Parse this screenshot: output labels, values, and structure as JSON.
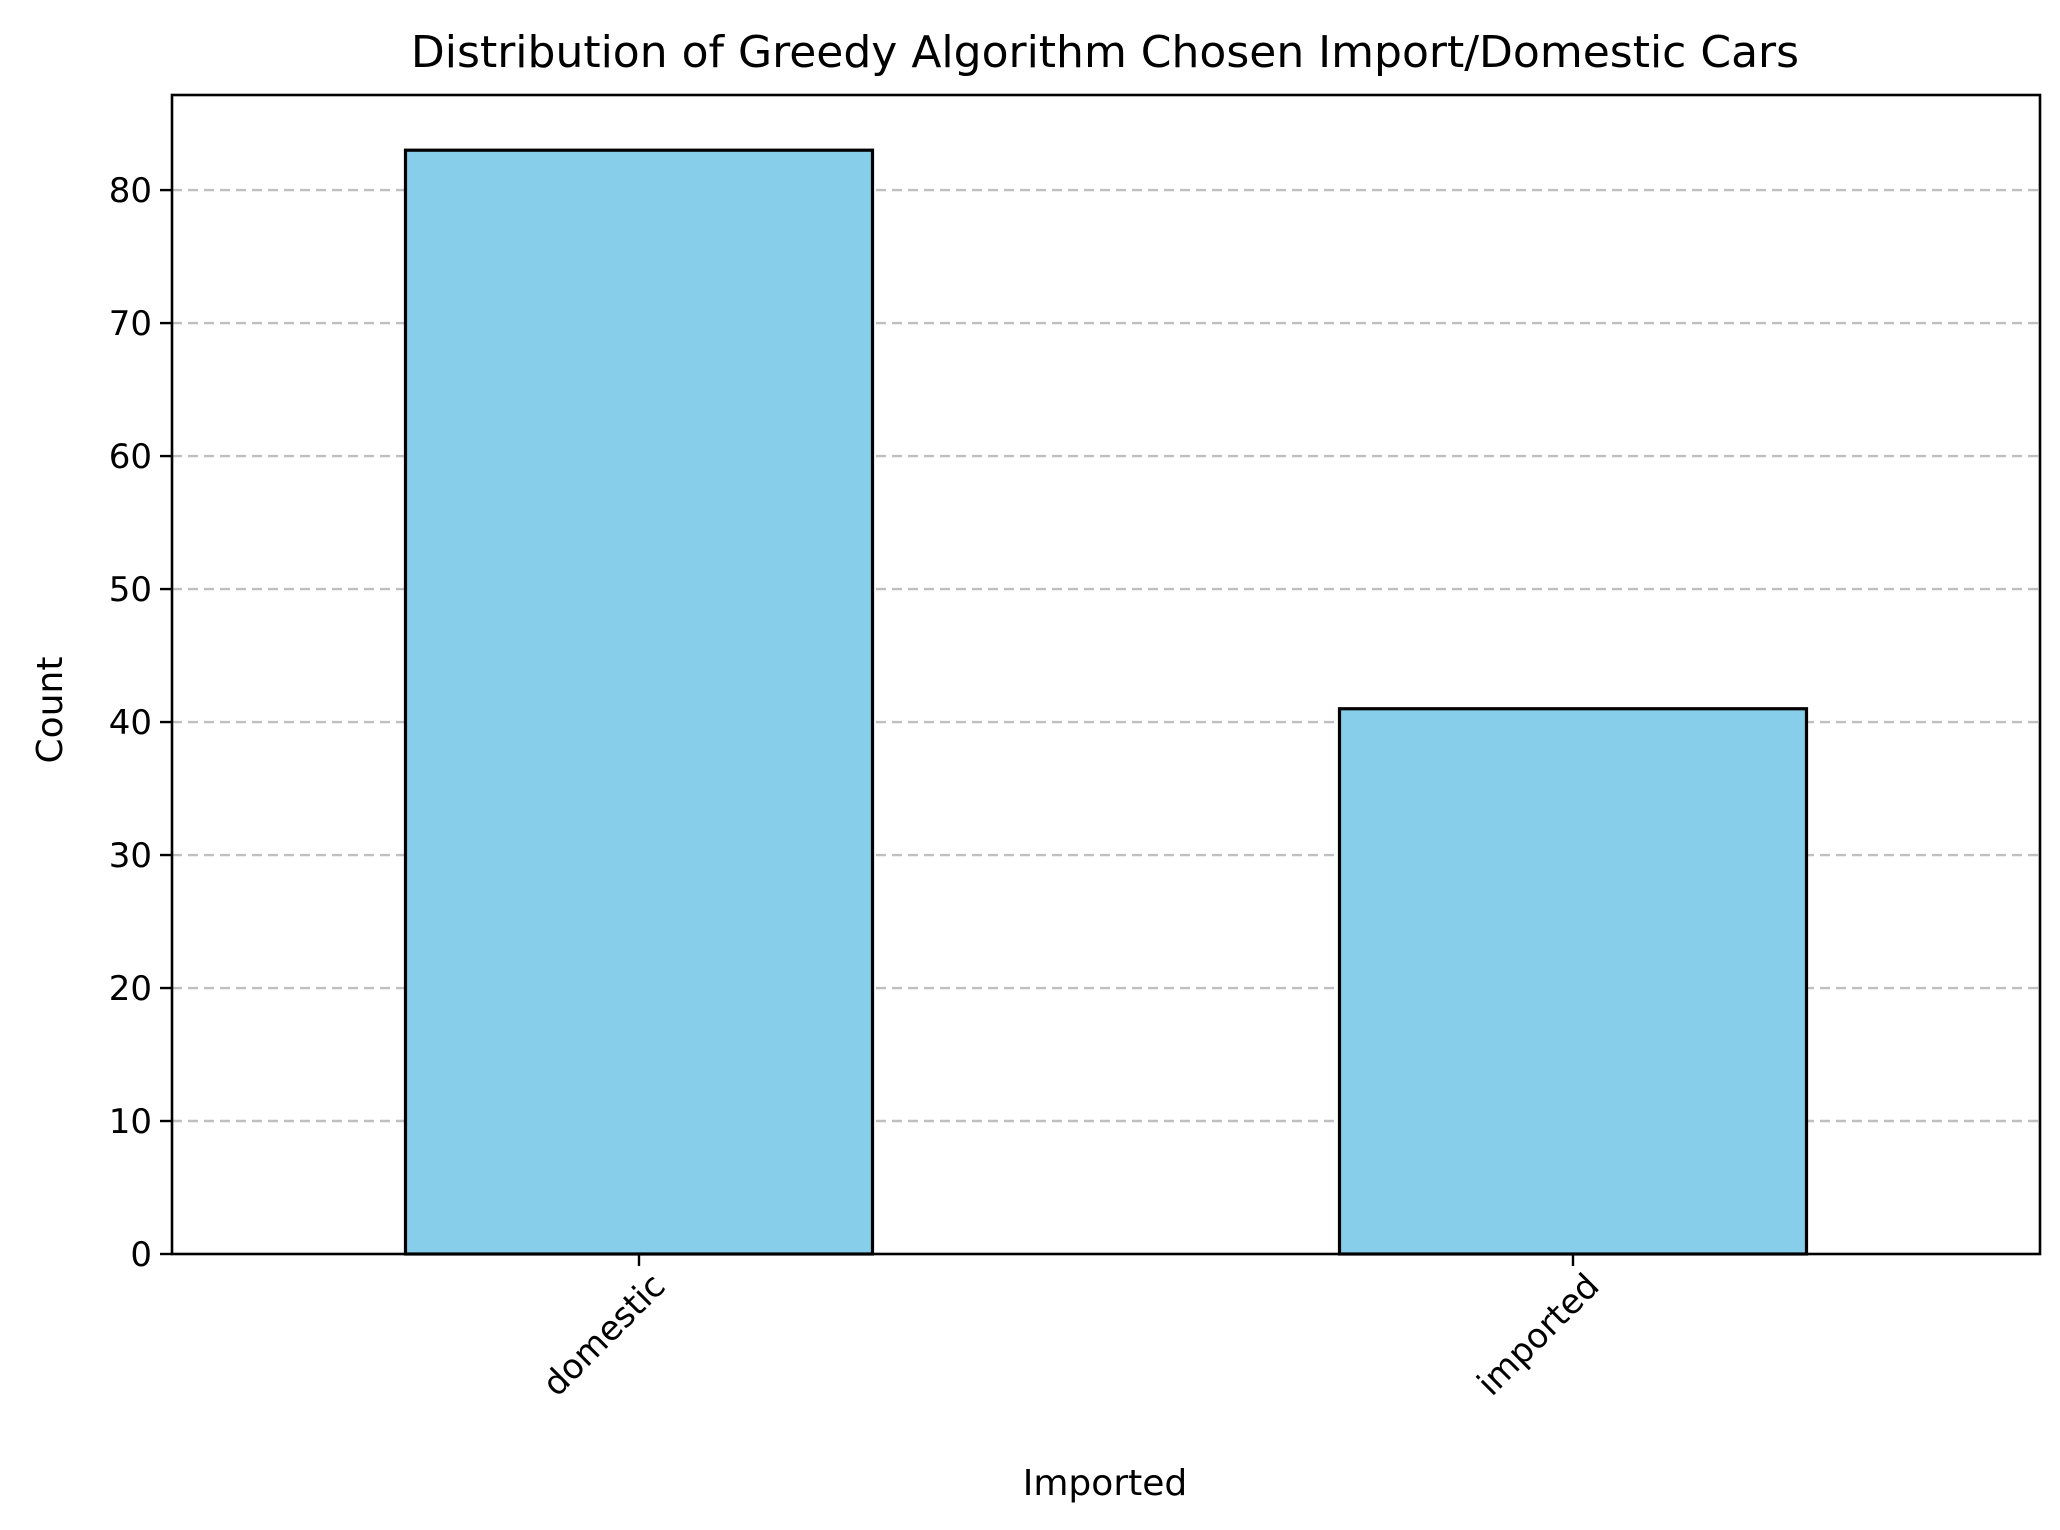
{
  "chart_data": {
    "type": "bar",
    "title": "Distribution of Greedy Algorithm Chosen Import/Domestic Cars",
    "xlabel": "Imported",
    "ylabel": "Count",
    "categories": [
      "domestic",
      "imported"
    ],
    "values": [
      83,
      41
    ],
    "ylim": [
      0,
      87.15
    ],
    "yticks": [
      0,
      10,
      20,
      30,
      40,
      50,
      60,
      70,
      80
    ],
    "grid": "y-dashed",
    "bar_color": "#87CEEB",
    "bar_edge_color": "#000000",
    "xtick_rotation": 45
  }
}
